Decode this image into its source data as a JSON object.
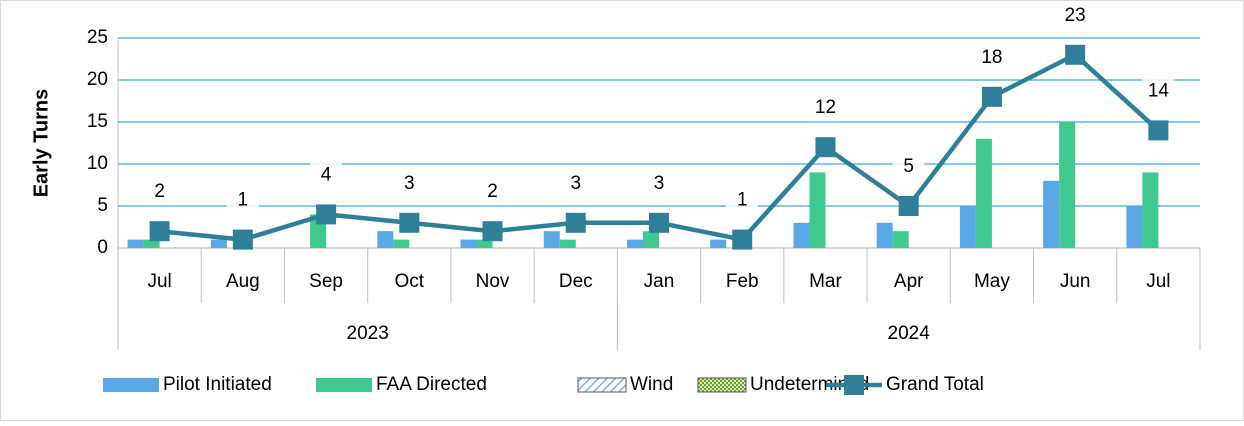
{
  "chart_data": {
    "type": "bar-line",
    "y_axis_label": "Early Turns",
    "categories": [
      "Jul",
      "Aug",
      "Sep",
      "Oct",
      "Nov",
      "Dec",
      "Jan",
      "Feb",
      "Mar",
      "Apr",
      "May",
      "Jun",
      "Jul"
    ],
    "category_groups": [
      {
        "label": "2023",
        "size": 6
      },
      {
        "label": "2024",
        "size": 7
      }
    ],
    "series": [
      {
        "name": "Pilot Initiated",
        "type": "bar",
        "color": "#5aa7e6",
        "values": [
          1,
          1,
          0,
          2,
          1,
          2,
          1,
          1,
          3,
          3,
          5,
          8,
          5
        ]
      },
      {
        "name": "FAA Directed",
        "type": "bar",
        "color": "#3ec98e",
        "values": [
          1,
          0,
          4,
          1,
          1,
          1,
          2,
          0,
          9,
          2,
          13,
          15,
          9
        ]
      },
      {
        "name": "Wind",
        "type": "bar",
        "color": "#7fb3dc",
        "pattern": "hatch",
        "values": [
          0,
          0,
          0,
          0,
          0,
          0,
          0,
          0,
          0,
          0,
          0,
          0,
          0
        ]
      },
      {
        "name": "Undetermined",
        "type": "bar",
        "color": "#8fc24a",
        "pattern": "checker",
        "values": [
          0,
          0,
          0,
          0,
          0,
          0,
          0,
          0,
          0,
          0,
          0,
          0,
          0
        ]
      },
      {
        "name": "Grand Total",
        "type": "line",
        "color": "#2f7f98",
        "values": [
          2,
          1,
          4,
          3,
          2,
          3,
          3,
          1,
          12,
          5,
          18,
          23,
          14
        ],
        "data_labels": true
      }
    ],
    "ylim": [
      0,
      25
    ],
    "yticks": [
      0,
      5,
      10,
      15,
      20,
      25
    ],
    "grid": true,
    "legend": "bottom"
  }
}
